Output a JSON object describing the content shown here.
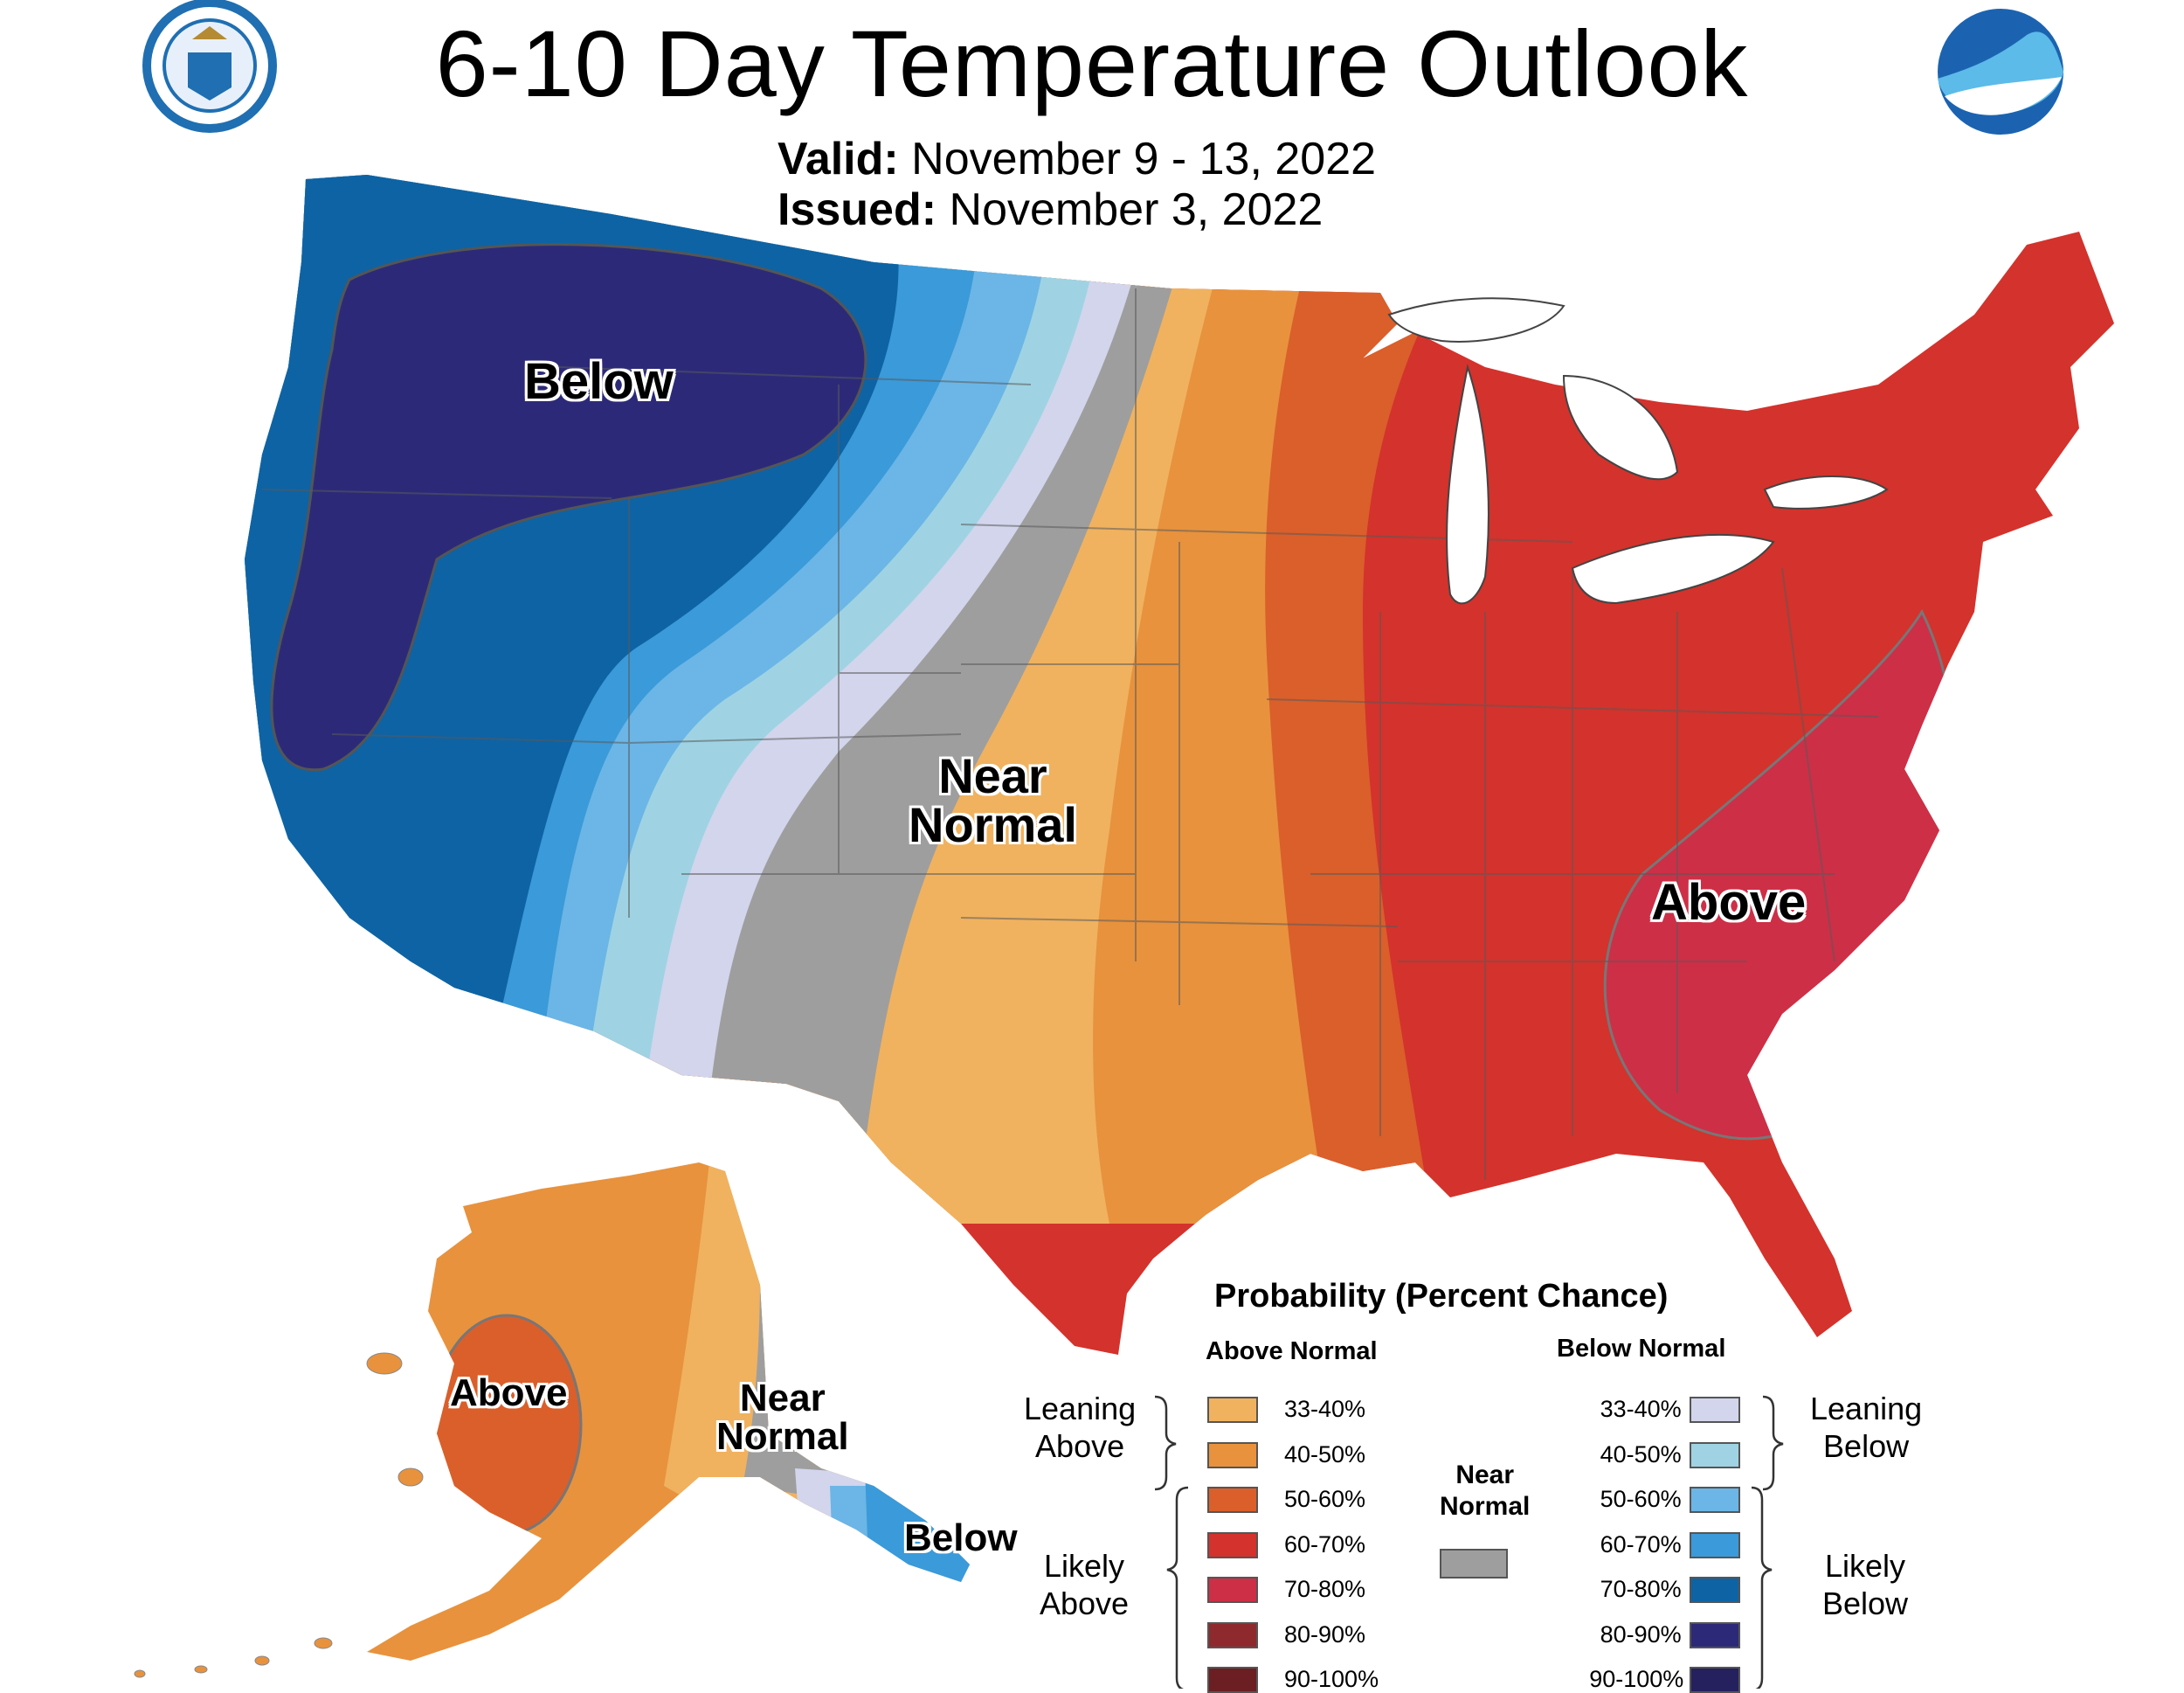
{
  "title": "6-10 Day Temperature Outlook",
  "valid_label": "Valid:",
  "valid_value": "November 9 - 13, 2022",
  "issued_label": "Issued:",
  "issued_value": "November 3, 2022",
  "logos": {
    "left": "Department of Commerce seal",
    "right": "NOAA"
  },
  "map_labels": {
    "conus_below": "Below",
    "conus_near_1": "Near",
    "conus_near_2": "Normal",
    "conus_above": "Above",
    "ak_above": "Above",
    "ak_near_1": "Near",
    "ak_near_2": "Normal",
    "ak_below": "Below"
  },
  "legend": {
    "title": "Probability (Percent Chance)",
    "above_head": "Above Normal",
    "below_head": "Below Normal",
    "near_1": "Near",
    "near_2": "Normal",
    "leaning_above_1": "Leaning",
    "leaning_above_2": "Above",
    "likely_above_1": "Likely",
    "likely_above_2": "Above",
    "leaning_below_1": "Leaning",
    "leaning_below_2": "Below",
    "likely_below_1": "Likely",
    "likely_below_2": "Below",
    "above": [
      {
        "pct": "33-40%",
        "color": "#f0b25f"
      },
      {
        "pct": "40-50%",
        "color": "#e8923d"
      },
      {
        "pct": "50-60%",
        "color": "#da5f2b"
      },
      {
        "pct": "60-70%",
        "color": "#d4322c"
      },
      {
        "pct": "70-80%",
        "color": "#cd2f47"
      },
      {
        "pct": "80-90%",
        "color": "#8e2a2e"
      },
      {
        "pct": "90-100%",
        "color": "#6b1f22"
      }
    ],
    "below": [
      {
        "pct": "33-40%",
        "color": "#d2d5ec"
      },
      {
        "pct": "40-50%",
        "color": "#9fd3e3"
      },
      {
        "pct": "50-60%",
        "color": "#6bb6e6"
      },
      {
        "pct": "60-70%",
        "color": "#3b9ad9"
      },
      {
        "pct": "70-80%",
        "color": "#0e63a4"
      },
      {
        "pct": "80-90%",
        "color": "#2c2a78"
      },
      {
        "pct": "90-100%",
        "color": "#25205e"
      }
    ],
    "near_color": "#9e9e9e"
  }
}
